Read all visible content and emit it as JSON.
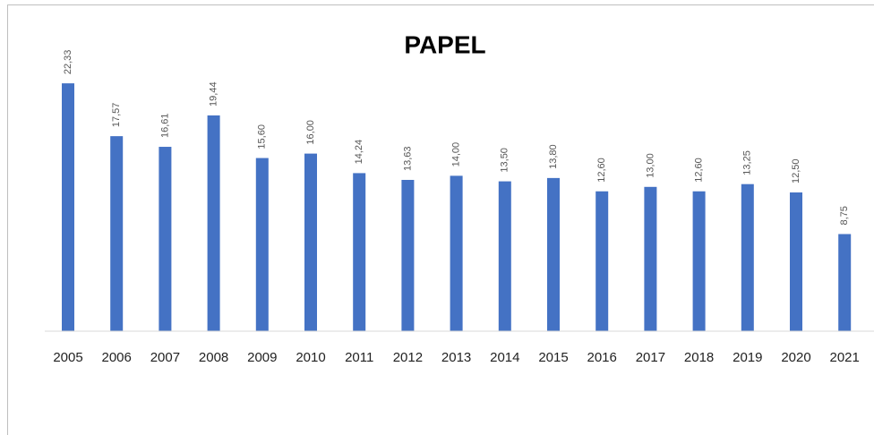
{
  "chart_data": {
    "type": "bar",
    "title": "PAPEL",
    "categories": [
      "2005",
      "2006",
      "2007",
      "2008",
      "2009",
      "2010",
      "2011",
      "2012",
      "2013",
      "2014",
      "2015",
      "2016",
      "2017",
      "2018",
      "2019",
      "2020",
      "2021"
    ],
    "values": [
      22.33,
      17.57,
      16.61,
      19.44,
      15.6,
      16.0,
      14.24,
      13.63,
      14.0,
      13.5,
      13.8,
      12.6,
      13.0,
      12.6,
      13.25,
      12.5,
      8.75
    ],
    "value_labels": [
      "22,33",
      "17,57",
      "16,61",
      "19,44",
      "15,60",
      "16,00",
      "14,24",
      "13,63",
      "14,00",
      "13,50",
      "13,80",
      "12,60",
      "13,00",
      "12,60",
      "13,25",
      "12,50",
      "8,75"
    ],
    "color": "#4472c4",
    "ylim": [
      0,
      25
    ]
  }
}
